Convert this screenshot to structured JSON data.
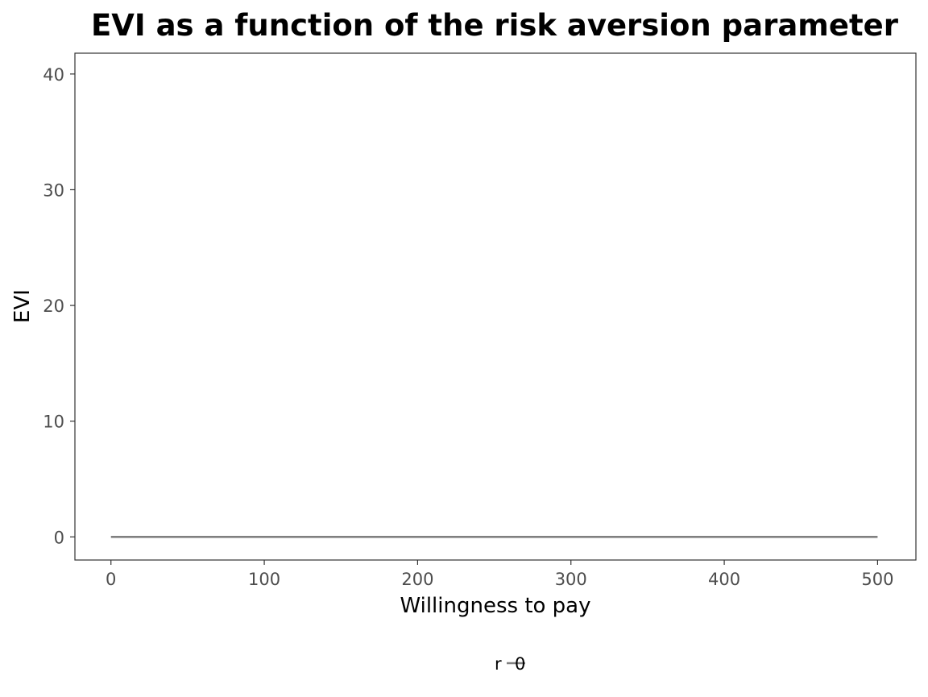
{
  "chart_data": {
    "type": "line",
    "title": "EVI as a function of the risk aversion parameter",
    "xlabel": "Willingness to pay",
    "ylabel": "EVI",
    "xlim": [
      -23.5,
      525
    ],
    "ylim": [
      -2,
      41.8
    ],
    "x_ticks": [
      0,
      100,
      200,
      300,
      400,
      500
    ],
    "y_ticks": [
      0,
      10,
      20,
      30,
      40
    ],
    "grid": false,
    "legend": {
      "position": "bottom",
      "title": "r",
      "entries": [
        "0"
      ]
    },
    "series": [
      {
        "name": "0",
        "color": "#808080",
        "x": [
          0,
          100,
          200,
          300,
          400,
          500
        ],
        "y": [
          0,
          0,
          0,
          0,
          0,
          0
        ]
      }
    ]
  }
}
